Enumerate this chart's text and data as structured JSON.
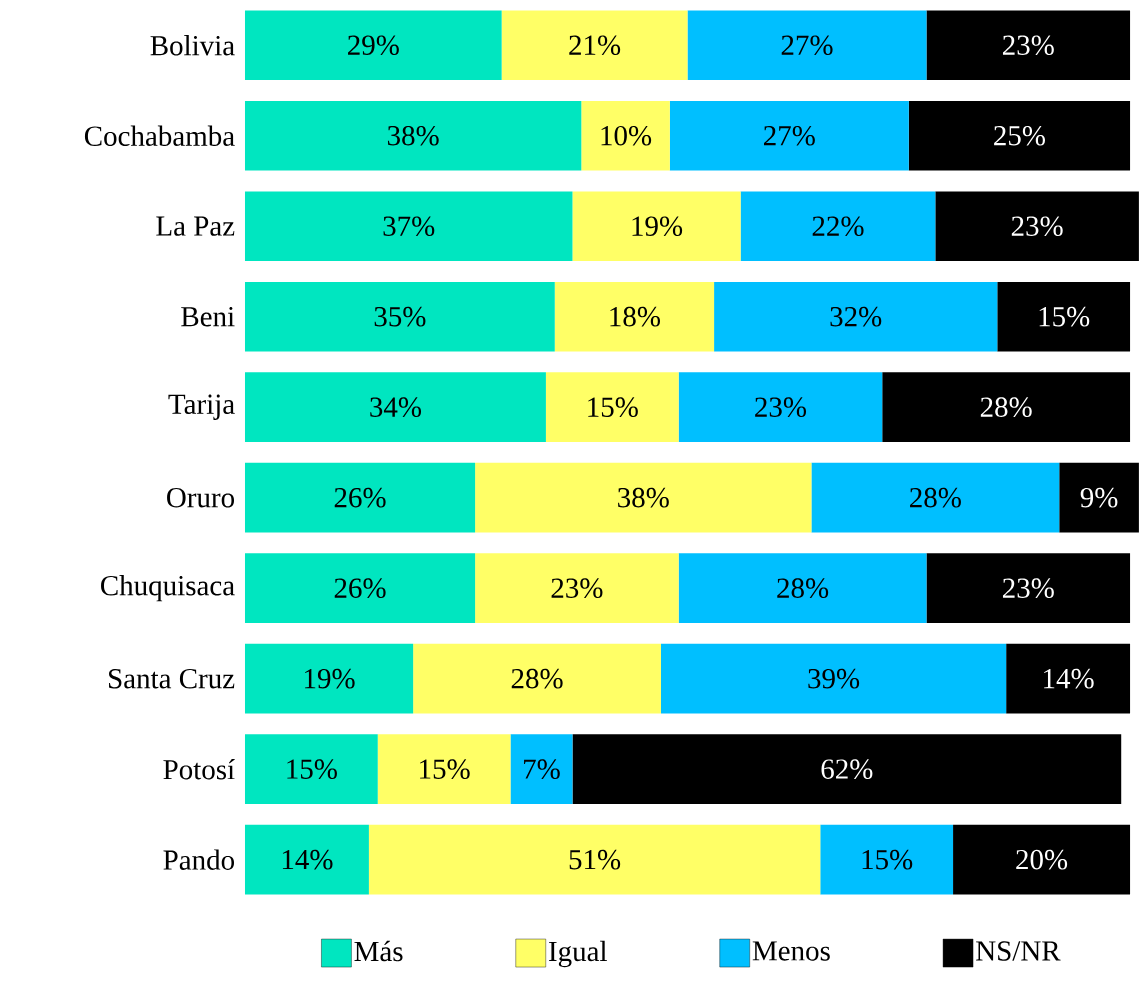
{
  "chart_data": {
    "type": "bar",
    "orientation": "horizontal",
    "stacked": true,
    "legend": "bottom",
    "categories": [
      "Bolivia",
      "Cochabamba",
      "La Paz",
      "Beni",
      "Tarija",
      "Oruro",
      "Chuquisaca",
      "Santa Cruz",
      "Potosí",
      "Pando"
    ],
    "series": [
      {
        "name": "Más",
        "color": "#00e6c0",
        "values": [
          29,
          38,
          37,
          35,
          34,
          26,
          26,
          19,
          15,
          14
        ],
        "value_labels": [
          "29%",
          "38%",
          "37%",
          "35%",
          "34%",
          "26%",
          "26%",
          "19%",
          "15%",
          "14%"
        ]
      },
      {
        "name": "Igual",
        "color": "#ffff66",
        "values": [
          21,
          10,
          19,
          18,
          15,
          38,
          23,
          28,
          15,
          51
        ],
        "value_labels": [
          "21%",
          "10%",
          "19%",
          "18%",
          "15%",
          "38%",
          "23%",
          "28%",
          "15%",
          "51%"
        ]
      },
      {
        "name": "Menos",
        "color": "#00bfff",
        "values": [
          27,
          27,
          22,
          32,
          23,
          28,
          28,
          39,
          7,
          15
        ],
        "value_labels": [
          "27%",
          "27%",
          "22%",
          "32%",
          "23%",
          "28%",
          "28%",
          "39%",
          "7%",
          "15%"
        ]
      },
      {
        "name": "NS/NR",
        "color": "#000000",
        "values": [
          23,
          25,
          23,
          15,
          28,
          9,
          23,
          14,
          62,
          20
        ],
        "value_labels": [
          "23%",
          "25%",
          "23%",
          "15%",
          "28%",
          "9%",
          "23%",
          "14%",
          "62%",
          "20%"
        ]
      }
    ]
  }
}
